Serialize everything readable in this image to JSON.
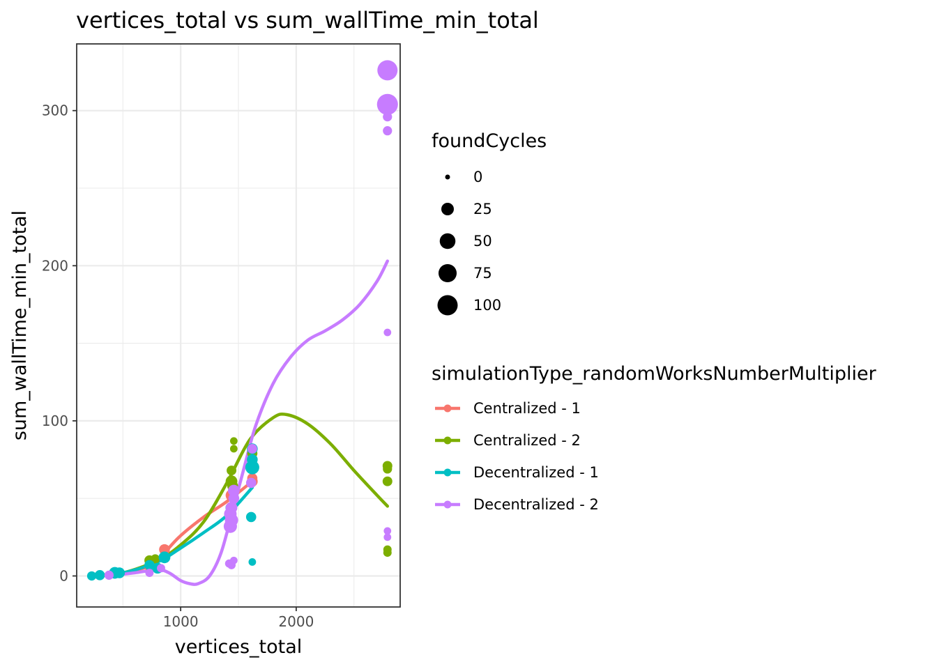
{
  "chart_data": {
    "type": "scatter",
    "title": "vertices_total  vs  sum_wallTime_min_total",
    "xlabel": "vertices_total",
    "ylabel": "sum_wallTime_min_total",
    "xlim": [
      100,
      2900
    ],
    "ylim": [
      -20,
      343
    ],
    "x_ticks": [
      1000,
      2000
    ],
    "x_tick_labels": [
      "1000",
      "2000"
    ],
    "y_ticks": [
      0,
      100,
      200,
      300
    ],
    "y_tick_labels": [
      "0",
      "100",
      "200",
      "300"
    ],
    "grid": true,
    "theme": "bw",
    "smoother": "loess",
    "size_legend": {
      "title": "foundCycles",
      "values": [
        0,
        25,
        50,
        75,
        100
      ],
      "labels": [
        "0",
        "25",
        "50",
        "75",
        "100"
      ]
    },
    "color_legend": {
      "title": "simulationType_randomWorksNumberMultiplier",
      "position": "right"
    },
    "series": [
      {
        "name": "Centralized - 1",
        "color": "#F8766D",
        "points": [
          {
            "x": 230,
            "y": 0,
            "size": 5
          },
          {
            "x": 300,
            "y": 0.5,
            "size": 3
          },
          {
            "x": 430,
            "y": 1.5,
            "size": 8
          },
          {
            "x": 730,
            "y": 6,
            "size": 10
          },
          {
            "x": 860,
            "y": 17,
            "size": 15
          },
          {
            "x": 1440,
            "y": 52,
            "size": 20
          },
          {
            "x": 1620,
            "y": 61,
            "size": 15
          },
          {
            "x": 1620,
            "y": 63,
            "size": 12
          }
        ],
        "smooth": [
          {
            "x": 230,
            "y": 0
          },
          {
            "x": 500,
            "y": 2
          },
          {
            "x": 750,
            "y": 7
          },
          {
            "x": 860,
            "y": 15
          },
          {
            "x": 1000,
            "y": 26
          },
          {
            "x": 1200,
            "y": 38
          },
          {
            "x": 1400,
            "y": 48
          },
          {
            "x": 1620,
            "y": 61
          }
        ]
      },
      {
        "name": "Centralized - 2",
        "color": "#7CAE00",
        "points": [
          {
            "x": 230,
            "y": 0.5,
            "size": 3
          },
          {
            "x": 430,
            "y": 2,
            "size": 8
          },
          {
            "x": 730,
            "y": 10,
            "size": 12
          },
          {
            "x": 780,
            "y": 11,
            "size": 8
          },
          {
            "x": 1440,
            "y": 68,
            "size": 10
          },
          {
            "x": 1440,
            "y": 61,
            "size": 20
          },
          {
            "x": 1450,
            "y": 58,
            "size": 15
          },
          {
            "x": 1460,
            "y": 82,
            "size": 3
          },
          {
            "x": 1460,
            "y": 87,
            "size": 3
          },
          {
            "x": 1620,
            "y": 79,
            "size": 12
          },
          {
            "x": 2790,
            "y": 71,
            "size": 10
          },
          {
            "x": 2790,
            "y": 69,
            "size": 8
          },
          {
            "x": 2790,
            "y": 61,
            "size": 10
          },
          {
            "x": 2790,
            "y": 17,
            "size": 5
          },
          {
            "x": 2790,
            "y": 15,
            "size": 5
          }
        ],
        "smooth": [
          {
            "x": 230,
            "y": 0
          },
          {
            "x": 500,
            "y": 2
          },
          {
            "x": 800,
            "y": 10
          },
          {
            "x": 1000,
            "y": 20
          },
          {
            "x": 1200,
            "y": 35
          },
          {
            "x": 1400,
            "y": 60
          },
          {
            "x": 1600,
            "y": 88
          },
          {
            "x": 1800,
            "y": 102
          },
          {
            "x": 1920,
            "y": 104
          },
          {
            "x": 2100,
            "y": 98
          },
          {
            "x": 2300,
            "y": 85
          },
          {
            "x": 2500,
            "y": 68
          },
          {
            "x": 2700,
            "y": 52
          },
          {
            "x": 2790,
            "y": 45
          }
        ]
      },
      {
        "name": "Decentralized - 1",
        "color": "#00BFC4",
        "points": [
          {
            "x": 230,
            "y": 0,
            "size": 8
          },
          {
            "x": 300,
            "y": 0.5,
            "size": 12
          },
          {
            "x": 430,
            "y": 2,
            "size": 20
          },
          {
            "x": 470,
            "y": 2,
            "size": 15
          },
          {
            "x": 730,
            "y": 7,
            "size": 12
          },
          {
            "x": 800,
            "y": 5,
            "size": 15
          },
          {
            "x": 860,
            "y": 12,
            "size": 20
          },
          {
            "x": 1430,
            "y": 44,
            "size": 10
          },
          {
            "x": 1620,
            "y": 82,
            "size": 15
          },
          {
            "x": 1620,
            "y": 75,
            "size": 15
          },
          {
            "x": 1620,
            "y": 70,
            "size": 35
          },
          {
            "x": 1610,
            "y": 38,
            "size": 12
          },
          {
            "x": 1620,
            "y": 9,
            "size": 3
          }
        ],
        "smooth": [
          {
            "x": 230,
            "y": 0
          },
          {
            "x": 500,
            "y": 2
          },
          {
            "x": 800,
            "y": 9
          },
          {
            "x": 1000,
            "y": 18
          },
          {
            "x": 1200,
            "y": 28
          },
          {
            "x": 1400,
            "y": 39
          },
          {
            "x": 1620,
            "y": 57
          }
        ]
      },
      {
        "name": "Decentralized - 2",
        "color": "#C77CFF",
        "points": [
          {
            "x": 380,
            "y": 0.5,
            "size": 8
          },
          {
            "x": 730,
            "y": 2,
            "size": 5
          },
          {
            "x": 830,
            "y": 5,
            "size": 5
          },
          {
            "x": 1420,
            "y": 8,
            "size": 5
          },
          {
            "x": 1440,
            "y": 7,
            "size": 5
          },
          {
            "x": 1460,
            "y": 10,
            "size": 3
          },
          {
            "x": 1430,
            "y": 32,
            "size": 30
          },
          {
            "x": 1440,
            "y": 36,
            "size": 30
          },
          {
            "x": 1430,
            "y": 40,
            "size": 25
          },
          {
            "x": 1440,
            "y": 44,
            "size": 20
          },
          {
            "x": 1460,
            "y": 50,
            "size": 15
          },
          {
            "x": 1460,
            "y": 55,
            "size": 20
          },
          {
            "x": 1610,
            "y": 60,
            "size": 12
          },
          {
            "x": 1620,
            "y": 82,
            "size": 10
          },
          {
            "x": 2790,
            "y": 326,
            "size": 100
          },
          {
            "x": 2790,
            "y": 304,
            "size": 110
          },
          {
            "x": 2790,
            "y": 296,
            "size": 8
          },
          {
            "x": 2790,
            "y": 287,
            "size": 8
          },
          {
            "x": 2790,
            "y": 157,
            "size": 3
          },
          {
            "x": 2790,
            "y": 29,
            "size": 3
          },
          {
            "x": 2790,
            "y": 25,
            "size": 3
          }
        ],
        "smooth": [
          {
            "x": 380,
            "y": 0
          },
          {
            "x": 600,
            "y": 2
          },
          {
            "x": 800,
            "y": 4
          },
          {
            "x": 900,
            "y": 2
          },
          {
            "x": 1000,
            "y": -3
          },
          {
            "x": 1080,
            "y": -5
          },
          {
            "x": 1150,
            "y": -5
          },
          {
            "x": 1250,
            "y": 0
          },
          {
            "x": 1350,
            "y": 15
          },
          {
            "x": 1450,
            "y": 42
          },
          {
            "x": 1550,
            "y": 70
          },
          {
            "x": 1650,
            "y": 97
          },
          {
            "x": 1800,
            "y": 124
          },
          {
            "x": 1950,
            "y": 141
          },
          {
            "x": 2100,
            "y": 152
          },
          {
            "x": 2250,
            "y": 158
          },
          {
            "x": 2400,
            "y": 165
          },
          {
            "x": 2550,
            "y": 175
          },
          {
            "x": 2700,
            "y": 190
          },
          {
            "x": 2790,
            "y": 203
          }
        ]
      }
    ]
  }
}
